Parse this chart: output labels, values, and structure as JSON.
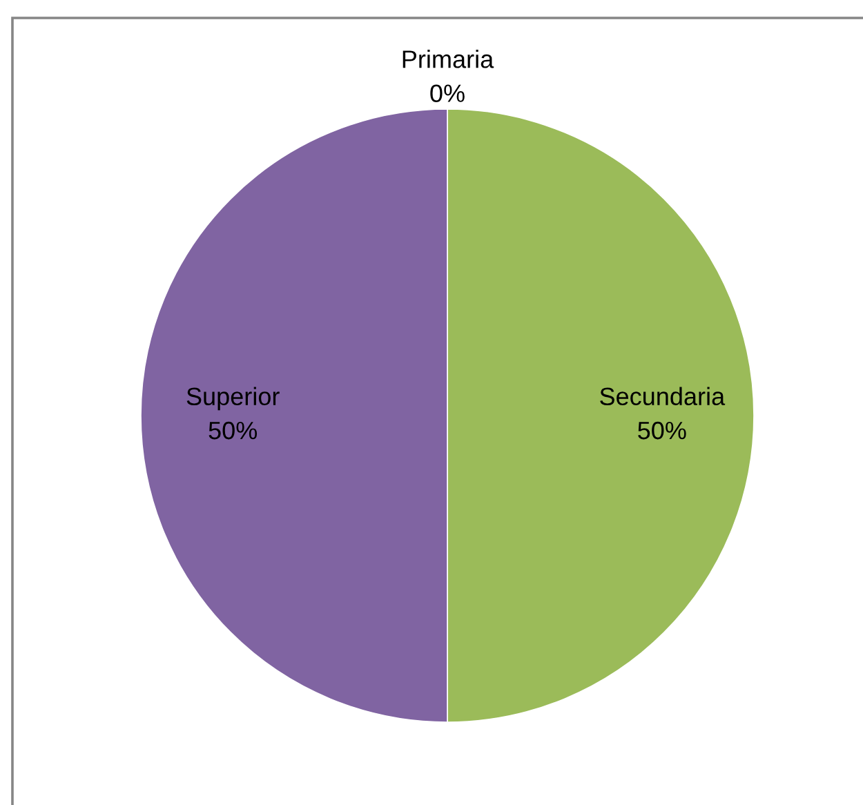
{
  "chart_data": {
    "type": "pie",
    "categories": [
      "Primaria",
      "Secundaria",
      "Superior"
    ],
    "values": [
      0,
      50,
      50
    ],
    "colors": [
      "#4f81bd",
      "#9bbb59",
      "#8064a2"
    ],
    "value_labels": [
      "0%",
      "50%",
      "50%"
    ]
  }
}
